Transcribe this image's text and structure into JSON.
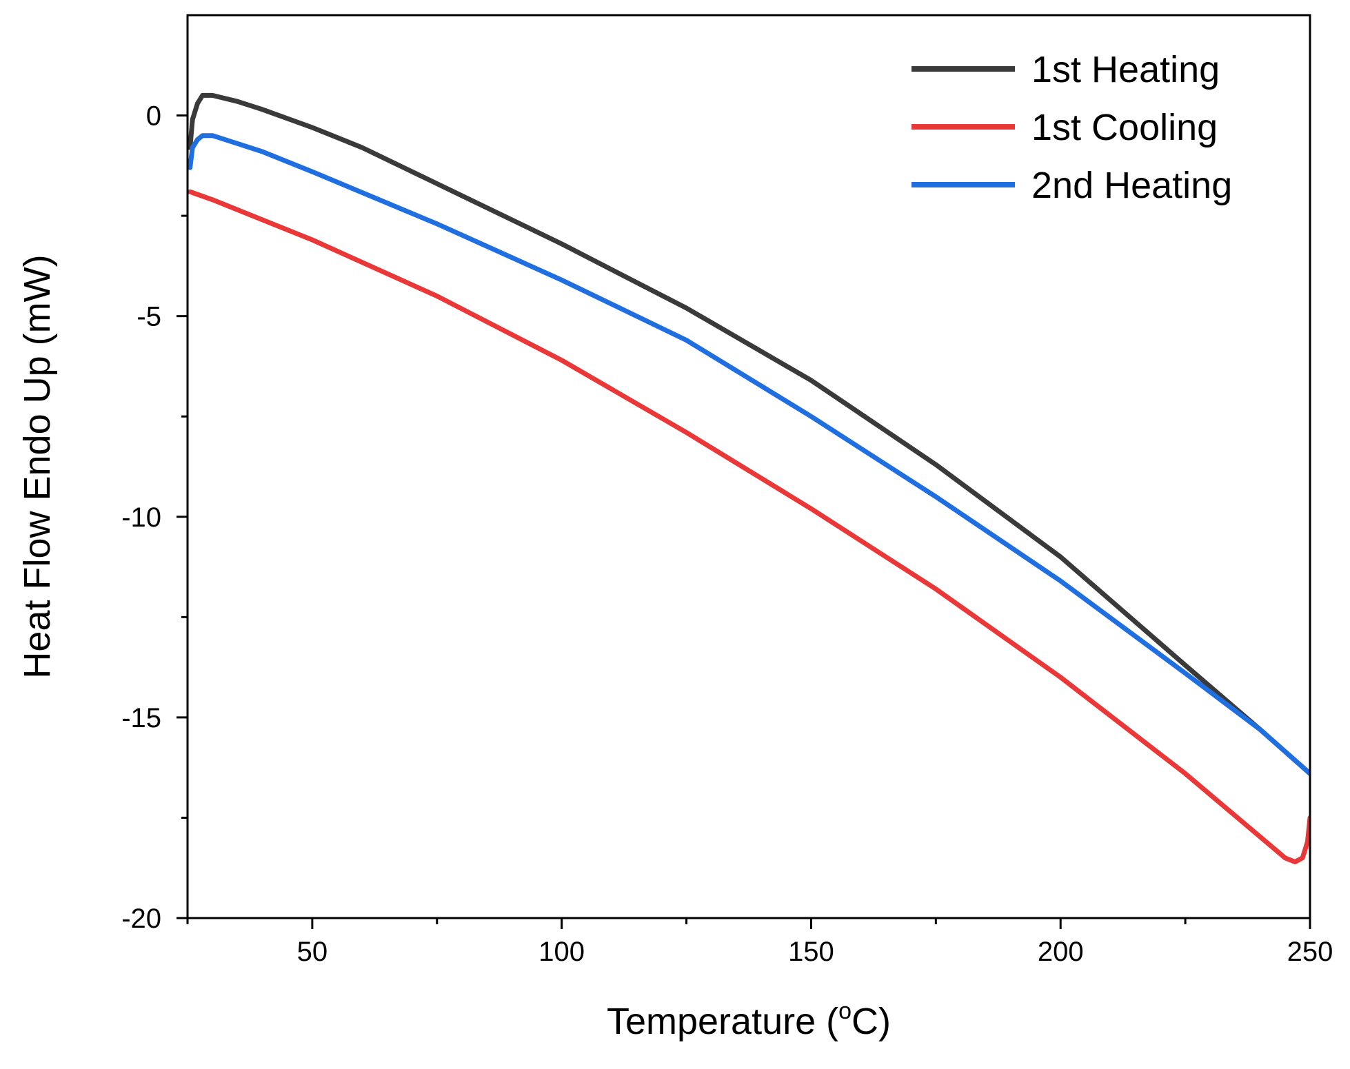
{
  "chart_data": {
    "type": "line",
    "xlabel": "Temperature (",
    "xlabel_sup": "o",
    "xlabel_end": "C)",
    "ylabel": "Heat Flow Endo Up (mW)",
    "xlim": [
      25,
      250
    ],
    "ylim": [
      -20,
      2.5
    ],
    "xticks": [
      50,
      100,
      150,
      200,
      250
    ],
    "yticks": [
      0,
      -5,
      -10,
      -15,
      -20
    ],
    "xtick_labels": [
      "50",
      "100",
      "150",
      "200",
      "250"
    ],
    "ytick_labels": [
      "0",
      "-5",
      "-10",
      "-15",
      "-20"
    ],
    "x_minor_step": 25,
    "y_minor_step": 2.5,
    "grid": false,
    "legend_position": "top-right",
    "series": [
      {
        "name": "1st Heating",
        "color": "#3a3a3a",
        "x": [
          25.5,
          26,
          27,
          28,
          30,
          35,
          40,
          50,
          60,
          75,
          90,
          100,
          125,
          150,
          175,
          200,
          225,
          240,
          250
        ],
        "y": [
          -0.8,
          -0.1,
          0.3,
          0.5,
          0.5,
          0.35,
          0.15,
          -0.3,
          -0.8,
          -1.7,
          -2.6,
          -3.2,
          -4.8,
          -6.6,
          -8.7,
          -11.0,
          -13.7,
          -15.3,
          -16.4
        ]
      },
      {
        "name": "1st Cooling",
        "color": "#ea3838",
        "x": [
          25.5,
          30,
          40,
          50,
          75,
          100,
          125,
          150,
          175,
          200,
          225,
          245,
          247,
          248.5,
          249.5,
          250
        ],
        "y": [
          -1.9,
          -2.1,
          -2.6,
          -3.1,
          -4.5,
          -6.1,
          -7.9,
          -9.8,
          -11.8,
          -14.0,
          -16.4,
          -18.5,
          -18.6,
          -18.5,
          -18.1,
          -17.5
        ]
      },
      {
        "name": "2nd Heating",
        "color": "#1f6fe0",
        "x": [
          25.5,
          26,
          27,
          28,
          30,
          35,
          40,
          50,
          75,
          100,
          125,
          150,
          175,
          200,
          225,
          240,
          250
        ],
        "y": [
          -1.3,
          -0.8,
          -0.6,
          -0.5,
          -0.5,
          -0.7,
          -0.9,
          -1.4,
          -2.7,
          -4.1,
          -5.6,
          -7.5,
          -9.5,
          -11.6,
          -13.9,
          -15.3,
          -16.4
        ]
      }
    ]
  }
}
